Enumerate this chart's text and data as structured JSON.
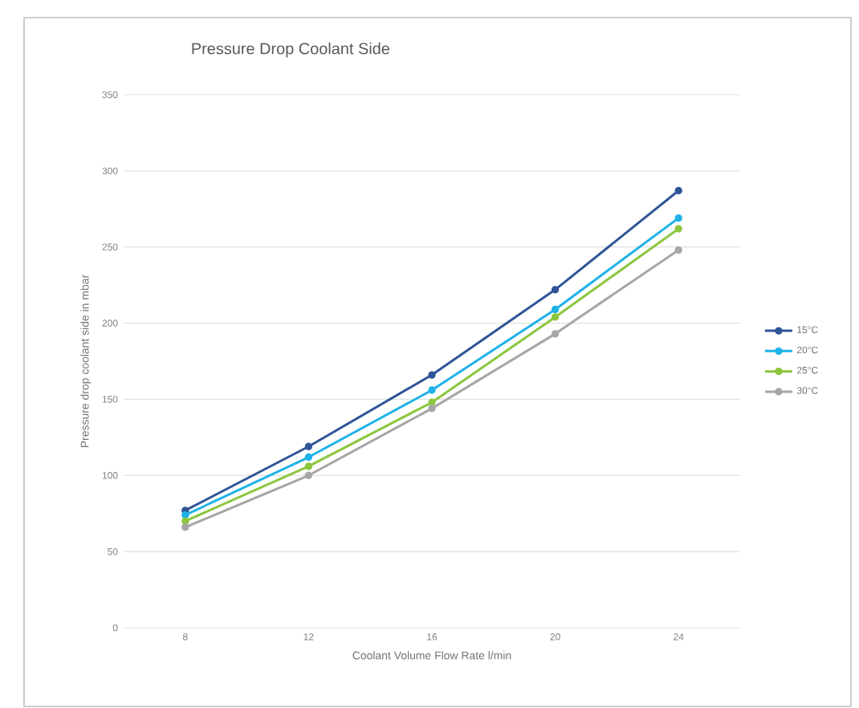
{
  "chart_data": {
    "type": "line",
    "title": "Pressure Drop Coolant Side",
    "xlabel": "Coolant Volume Flow Rate l/min",
    "ylabel": "Pressure drop coolant side in mbar",
    "x": [
      8,
      12,
      16,
      20,
      24
    ],
    "series": [
      {
        "name": "15°C",
        "color": "#2f5597",
        "values": [
          77,
          119,
          166,
          222,
          287
        ]
      },
      {
        "name": "20°C",
        "color": "#1fb2e8",
        "values": [
          74,
          112,
          156,
          209,
          269
        ]
      },
      {
        "name": "25°C",
        "color": "#8cc63f",
        "values": [
          70,
          106,
          148,
          204,
          262
        ]
      },
      {
        "name": "30°C",
        "color": "#a6a6a6",
        "values": [
          66,
          100,
          144,
          193,
          248
        ]
      }
    ],
    "xlim": [
      6,
      26
    ],
    "ylim": [
      0,
      350
    ],
    "xticks": [
      8,
      12,
      16,
      20,
      24
    ],
    "yticks": [
      0,
      50,
      100,
      150,
      200,
      250,
      300,
      350
    ],
    "grid": "y",
    "legend": "right",
    "marker": "circle",
    "line_style": "solid"
  }
}
